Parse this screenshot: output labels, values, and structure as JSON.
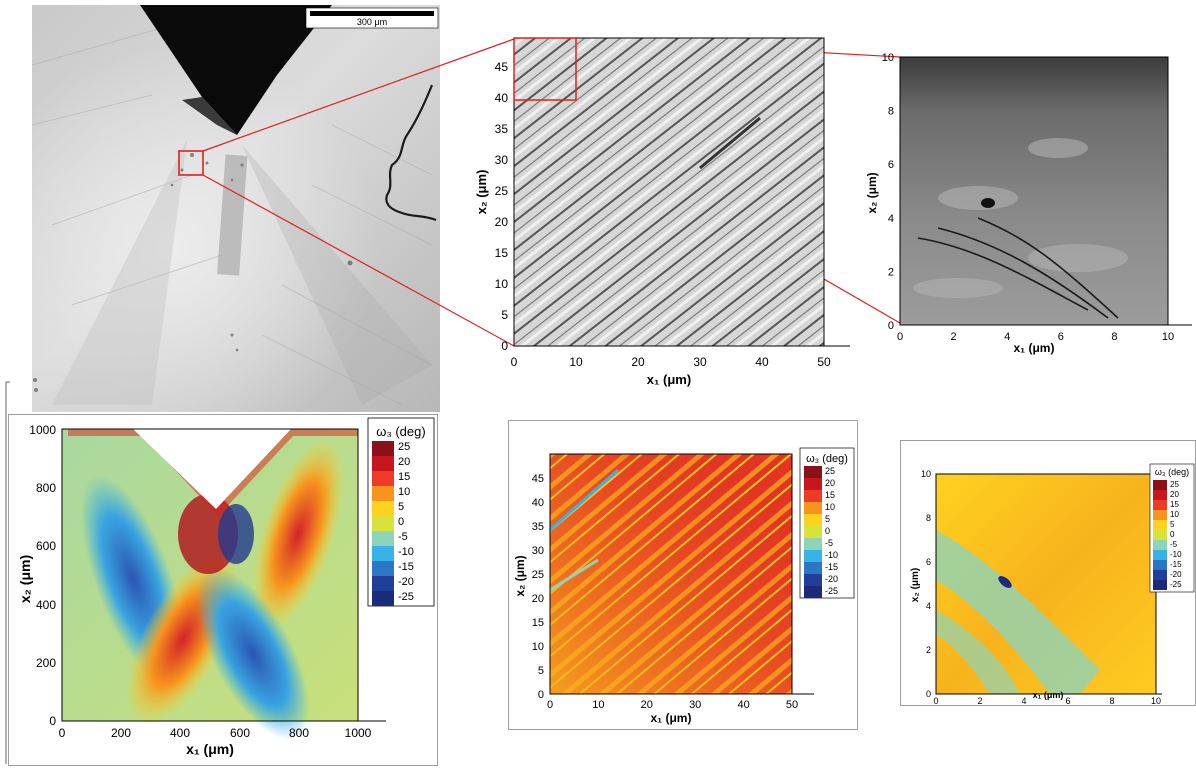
{
  "micrograph": {
    "scale_bar_label": "300 μm"
  },
  "panel_mid_top": {
    "x_ticks": [
      "0",
      "10",
      "20",
      "30",
      "40",
      "50"
    ],
    "y_ticks": [
      "0",
      "5",
      "10",
      "15",
      "20",
      "25",
      "30",
      "35",
      "40",
      "45"
    ],
    "xlabel": "x₁ (μm)",
    "ylabel": "x₂ (μm)"
  },
  "panel_right_top": {
    "x_ticks": [
      "0",
      "2",
      "4",
      "6",
      "8",
      "10"
    ],
    "y_ticks": [
      "0",
      "2",
      "4",
      "6",
      "8",
      "10"
    ],
    "xlabel": "x₁ (μm)",
    "ylabel": "x₂ (μm)"
  },
  "panel_left_bottom": {
    "x_ticks": [
      "0",
      "200",
      "400",
      "600",
      "800",
      "1000"
    ],
    "y_ticks": [
      "0",
      "200",
      "400",
      "600",
      "800",
      "1000"
    ],
    "xlabel": "x₁ (μm)",
    "ylabel": "x₂ (μm)",
    "legend_title": "ω₃ (deg)",
    "legend_levels": [
      "25",
      "20",
      "15",
      "10",
      "5",
      "0",
      "-5",
      "-10",
      "-15",
      "-20",
      "-25"
    ]
  },
  "panel_mid_bottom": {
    "x_ticks": [
      "0",
      "10",
      "20",
      "30",
      "40",
      "50"
    ],
    "y_ticks": [
      "0",
      "5",
      "10",
      "15",
      "20",
      "25",
      "30",
      "35",
      "40",
      "45"
    ],
    "xlabel": "x₁ (μm)",
    "ylabel": "x₂ (μm)",
    "legend_title": "ω₃ (deg)",
    "legend_levels": [
      "25",
      "20",
      "15",
      "10",
      "5",
      "0",
      "-5",
      "-10",
      "-15",
      "-20",
      "-25"
    ]
  },
  "panel_right_bottom": {
    "x_ticks": [
      "0",
      "2",
      "4",
      "6",
      "8",
      "10"
    ],
    "y_ticks": [
      "0",
      "2",
      "4",
      "6",
      "8",
      "10"
    ],
    "xlabel": "x₁ (μm)",
    "ylabel": "x₂ (μm)",
    "legend_title": "ω₃ (deg)",
    "legend_levels": [
      "25",
      "20",
      "15",
      "10",
      "5",
      "0",
      "-5",
      "-10",
      "-15",
      "-20",
      "-25"
    ]
  },
  "colors": {
    "zoom_box": "#e0201c",
    "colormap": [
      "#8b1018",
      "#c8161f",
      "#ee3a26",
      "#f7941d",
      "#ffd21f",
      "#d8e23a",
      "#8fd3b8",
      "#39b3e6",
      "#2b77c5",
      "#213f9a",
      "#1c2a7a"
    ]
  }
}
